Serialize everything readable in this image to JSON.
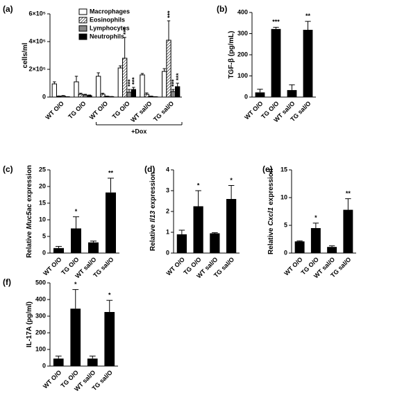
{
  "chart_data": [
    {
      "type": "bar",
      "panel": "(a)",
      "ylabel": [
        "cells/ml"
      ],
      "categories": [
        "WT O/O",
        "TG O/O",
        "WT O/O",
        "TG O/O",
        "WT sal/O",
        "TG sal/O"
      ],
      "series": [
        {
          "name": "Macrophages",
          "color": "#ffffff",
          "values": [
            95000,
            110000,
            150000,
            210000,
            160000,
            185000
          ],
          "errors": [
            15000,
            40000,
            25000,
            15000,
            10000,
            20000
          ]
        },
        {
          "name": "Eosinophils",
          "color": "#ffffff",
          "hatch": true,
          "values": [
            5000,
            20000,
            20000,
            280000,
            20000,
            410000
          ],
          "errors": [
            3000,
            8000,
            8000,
            150000,
            10000,
            140000
          ]
        },
        {
          "name": "Lymphocytes",
          "color": "#888888",
          "values": [
            8000,
            15000,
            5000,
            35000,
            5000,
            40000
          ],
          "errors": [
            3000,
            5000,
            2000,
            20000,
            2000,
            15000
          ]
        },
        {
          "name": "Neutrophils",
          "color": "#000000",
          "values": [
            2000,
            10000,
            3000,
            55000,
            2000,
            75000
          ],
          "errors": [
            1000,
            5000,
            1000,
            15000,
            1000,
            25000
          ]
        }
      ],
      "annotations": [
        {
          "text": "***",
          "category": 3,
          "series": 1
        },
        {
          "text": "***",
          "category": 3,
          "series": 2
        },
        {
          "text": "***",
          "category": 3,
          "series": 3
        },
        {
          "text": "***",
          "category": 5,
          "series": 1
        },
        {
          "text": "***",
          "category": 5,
          "series": 2
        },
        {
          "text": "***",
          "category": 5,
          "series": 3
        }
      ],
      "bracket": {
        "label": "+Dox",
        "from": 2,
        "to": 5
      },
      "ylim": [
        0,
        600000
      ],
      "yticks": [
        0,
        {
          "value": 200000,
          "label": "2×10⁵"
        },
        {
          "value": 400000,
          "label": "4×10⁵"
        },
        {
          "value": 600000,
          "label": "6×10⁵"
        }
      ]
    },
    {
      "type": "bar",
      "panel": "(b)",
      "ylabel": [
        "TGF-β (pg/mL)"
      ],
      "color": "#000000",
      "categories": [
        "WT O/O",
        "TG O/O",
        "WT sal/O",
        "TG sal/O"
      ],
      "values": [
        22,
        322,
        33,
        318
      ],
      "errors": [
        15,
        8,
        25,
        40
      ],
      "annotations": [
        null,
        "***",
        null,
        "**"
      ],
      "ylim": [
        0,
        400
      ],
      "yticks": [
        0,
        100,
        200,
        300,
        400
      ]
    },
    {
      "type": "bar",
      "panel": "(c)",
      "ylabel": [
        "Relative",
        "Muc5ac",
        "expression"
      ],
      "ylabel_italic": 1,
      "color": "#000000",
      "categories": [
        "WT O/O",
        "TG O/O",
        "WT sal/O",
        "TG sal/O"
      ],
      "values": [
        1.5,
        7.4,
        3.2,
        18.2
      ],
      "errors": [
        0.5,
        3.5,
        0.4,
        4.3
      ],
      "annotations": [
        null,
        "*",
        null,
        "**"
      ],
      "ylim": [
        0,
        25
      ],
      "yticks": [
        0,
        5,
        10,
        15,
        20,
        25
      ]
    },
    {
      "type": "bar",
      "panel": "(d)",
      "ylabel": [
        "Relative",
        "Il13",
        "expression"
      ],
      "ylabel_italic": 1,
      "color": "#000000",
      "categories": [
        "WT O/O",
        "TG O/O",
        "WT sal/O",
        "TG sal/O"
      ],
      "values": [
        0.9,
        2.25,
        0.95,
        2.6
      ],
      "errors": [
        0.2,
        0.75,
        0.03,
        0.65
      ],
      "annotations": [
        null,
        "*",
        null,
        "*"
      ],
      "ylim": [
        0,
        4
      ],
      "yticks": [
        0,
        1,
        2,
        3,
        4
      ]
    },
    {
      "type": "bar",
      "panel": "(e)",
      "ylabel": [
        "Relative",
        "Cxcl1",
        "expression"
      ],
      "ylabel_italic": 1,
      "color": "#000000",
      "categories": [
        "WT O/O",
        "TG O/O",
        "WT sal/O",
        "TG sal/O"
      ],
      "values": [
        2.1,
        4.5,
        1.1,
        7.8
      ],
      "errors": [
        0.1,
        0.9,
        0.2,
        2.0
      ],
      "annotations": [
        null,
        "*",
        null,
        "**"
      ],
      "ylim": [
        0,
        15
      ],
      "yticks": [
        0,
        5,
        10,
        15
      ]
    },
    {
      "type": "bar",
      "panel": "(f)",
      "ylabel": [
        "IL-17A (pg/ml)"
      ],
      "color": "#000000",
      "categories": [
        "WT O/O",
        "TG O/O",
        "WT sal/O",
        "TG sal/O"
      ],
      "values": [
        45,
        345,
        45,
        325
      ],
      "errors": [
        15,
        115,
        15,
        70
      ],
      "annotations": [
        null,
        "*",
        null,
        "*"
      ],
      "ylim": [
        0,
        500
      ],
      "yticks": [
        0,
        100,
        200,
        300,
        400,
        500
      ]
    }
  ]
}
